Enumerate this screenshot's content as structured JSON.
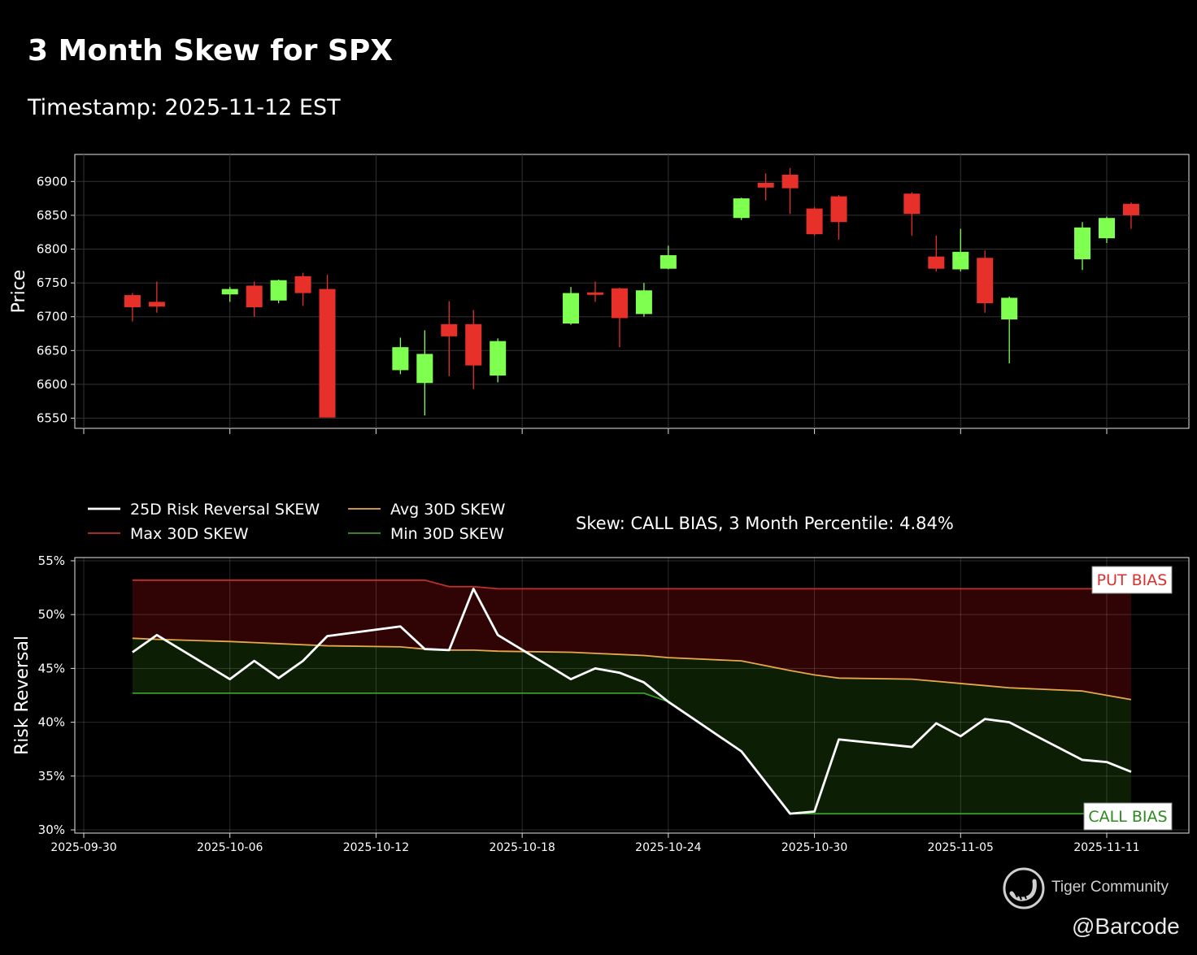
{
  "title": "3 Month Skew for SPX",
  "subtitle": "Timestamp: 2025-11-12 EST",
  "stat_text": "Skew: CALL BIAS, 3 Month Percentile: 4.84%",
  "put_bias_label": "PUT BIAS",
  "call_bias_label": "CALL BIAS",
  "watermark": {
    "brand": "Tiger Community",
    "handle": "@Barcode",
    "logo_icon": "tiger-community-logo-icon"
  },
  "colors": {
    "up": "#7fff50",
    "down": "#e8302a",
    "rr": "#ffffff",
    "max": "#c0302a",
    "avg": "#e6a84a",
    "min": "#3a9a2a",
    "put_fill": "#300404",
    "call_fill": "#0c1e04"
  },
  "chart_data": [
    {
      "type": "candlestick",
      "ylabel": "Price",
      "ylim": [
        6535,
        6940
      ],
      "yticks": [
        6550,
        6600,
        6650,
        6700,
        6750,
        6800,
        6850,
        6900
      ],
      "xlim": [
        "2025-09-30",
        "2025-11-13"
      ],
      "xticks": [
        "2025-09-30",
        "2025-10-06",
        "2025-10-12",
        "2025-10-18",
        "2025-10-24",
        "2025-10-30",
        "2025-11-05",
        "2025-11-11"
      ],
      "grid": true,
      "candles": [
        {
          "date": "2025-10-02",
          "open": 6732,
          "high": 6735,
          "low": 6693,
          "close": 6714
        },
        {
          "date": "2025-10-03",
          "open": 6722,
          "high": 6752,
          "low": 6706,
          "close": 6715
        },
        {
          "date": "2025-10-06",
          "open": 6733,
          "high": 6744,
          "low": 6722,
          "close": 6741
        },
        {
          "date": "2025-10-07",
          "open": 6746,
          "high": 6752,
          "low": 6700,
          "close": 6714
        },
        {
          "date": "2025-10-08",
          "open": 6724,
          "high": 6755,
          "low": 6720,
          "close": 6754
        },
        {
          "date": "2025-10-09",
          "open": 6760,
          "high": 6765,
          "low": 6716,
          "close": 6735
        },
        {
          "date": "2025-10-10",
          "open": 6741,
          "high": 6762,
          "low": 6551,
          "close": 6551
        },
        {
          "date": "2025-10-13",
          "open": 6621,
          "high": 6669,
          "low": 6615,
          "close": 6655
        },
        {
          "date": "2025-10-14",
          "open": 6602,
          "high": 6680,
          "low": 6554,
          "close": 6645
        },
        {
          "date": "2025-10-15",
          "open": 6689,
          "high": 6723,
          "low": 6612,
          "close": 6671
        },
        {
          "date": "2025-10-16",
          "open": 6689,
          "high": 6710,
          "low": 6593,
          "close": 6628
        },
        {
          "date": "2025-10-17",
          "open": 6613,
          "high": 6668,
          "low": 6603,
          "close": 6664
        },
        {
          "date": "2025-10-20",
          "open": 6690,
          "high": 6744,
          "low": 6688,
          "close": 6735
        },
        {
          "date": "2025-10-21",
          "open": 6736,
          "high": 6752,
          "low": 6722,
          "close": 6735
        },
        {
          "date": "2025-10-22",
          "open": 6742,
          "high": 6743,
          "low": 6655,
          "close": 6698
        },
        {
          "date": "2025-10-23",
          "open": 6704,
          "high": 6750,
          "low": 6700,
          "close": 6739
        },
        {
          "date": "2025-10-24",
          "open": 6771,
          "high": 6805,
          "low": 6770,
          "close": 6791
        },
        {
          "date": "2025-10-27",
          "open": 6846,
          "high": 6876,
          "low": 6843,
          "close": 6875
        },
        {
          "date": "2025-10-28",
          "open": 6898,
          "high": 6912,
          "low": 6872,
          "close": 6891
        },
        {
          "date": "2025-10-29",
          "open": 6910,
          "high": 6920,
          "low": 6852,
          "close": 6890
        },
        {
          "date": "2025-10-30",
          "open": 6860,
          "high": 6862,
          "low": 6820,
          "close": 6822
        },
        {
          "date": "2025-10-31",
          "open": 6878,
          "high": 6880,
          "low": 6814,
          "close": 6840
        },
        {
          "date": "2025-11-03",
          "open": 6882,
          "high": 6884,
          "low": 6820,
          "close": 6852
        },
        {
          "date": "2025-11-04",
          "open": 6789,
          "high": 6820,
          "low": 6767,
          "close": 6771
        },
        {
          "date": "2025-11-05",
          "open": 6770,
          "high": 6830,
          "low": 6767,
          "close": 6796
        },
        {
          "date": "2025-11-06",
          "open": 6787,
          "high": 6798,
          "low": 6706,
          "close": 6720
        },
        {
          "date": "2025-11-07",
          "open": 6696,
          "high": 6730,
          "low": 6631,
          "close": 6728
        },
        {
          "date": "2025-11-10",
          "open": 6785,
          "high": 6840,
          "low": 6769,
          "close": 6832
        },
        {
          "date": "2025-11-11",
          "open": 6816,
          "high": 6848,
          "low": 6809,
          "close": 6846
        },
        {
          "date": "2025-11-12",
          "open": 6867,
          "high": 6869,
          "low": 6830,
          "close": 6850
        }
      ]
    },
    {
      "type": "line",
      "ylabel": "Risk Reversal",
      "ylim": [
        29.7,
        55.3
      ],
      "yticks": [
        30,
        35,
        40,
        45,
        50,
        55
      ],
      "ytick_labels": [
        "30%",
        "35%",
        "40%",
        "45%",
        "50%",
        "55%"
      ],
      "xlim": [
        "2025-09-30",
        "2025-11-13"
      ],
      "xticks": [
        "2025-09-30",
        "2025-10-06",
        "2025-10-12",
        "2025-10-18",
        "2025-10-24",
        "2025-10-30",
        "2025-11-05",
        "2025-11-11"
      ],
      "grid": true,
      "legend": "top-left, outside above",
      "x": [
        "2025-10-02",
        "2025-10-03",
        "2025-10-06",
        "2025-10-07",
        "2025-10-08",
        "2025-10-09",
        "2025-10-10",
        "2025-10-13",
        "2025-10-14",
        "2025-10-15",
        "2025-10-16",
        "2025-10-17",
        "2025-10-20",
        "2025-10-21",
        "2025-10-22",
        "2025-10-23",
        "2025-10-24",
        "2025-10-27",
        "2025-10-29",
        "2025-10-30",
        "2025-10-31",
        "2025-11-03",
        "2025-11-04",
        "2025-11-05",
        "2025-11-06",
        "2025-11-07",
        "2025-11-10",
        "2025-11-11",
        "2025-11-12"
      ],
      "series": [
        {
          "name": "25D Risk Reversal SKEW",
          "key": "rr",
          "values": [
            46.5,
            48.1,
            44.0,
            45.7,
            44.1,
            45.7,
            48.0,
            48.9,
            46.8,
            46.7,
            52.4,
            48.1,
            44.0,
            45.0,
            44.6,
            43.7,
            41.9,
            37.3,
            31.5,
            31.7,
            38.4,
            37.7,
            39.9,
            38.7,
            40.3,
            40.0,
            36.5,
            36.3,
            35.4
          ]
        },
        {
          "name": "Max 30D SKEW",
          "key": "max",
          "values": [
            53.2,
            53.2,
            53.2,
            53.2,
            53.2,
            53.2,
            53.2,
            53.2,
            53.2,
            52.6,
            52.6,
            52.4,
            52.4,
            52.4,
            52.4,
            52.4,
            52.4,
            52.4,
            52.4,
            52.4,
            52.4,
            52.4,
            52.4,
            52.4,
            52.4,
            52.4,
            52.4,
            52.4,
            52.4
          ]
        },
        {
          "name": "Avg 30D SKEW",
          "key": "avg",
          "values": [
            47.8,
            47.7,
            47.5,
            47.4,
            47.3,
            47.2,
            47.1,
            47.0,
            46.8,
            46.7,
            46.7,
            46.6,
            46.5,
            46.4,
            46.3,
            46.2,
            46.0,
            45.7,
            44.8,
            44.4,
            44.1,
            44.0,
            43.8,
            43.6,
            43.4,
            43.2,
            42.9,
            42.5,
            42.1
          ]
        },
        {
          "name": "Min 30D SKEW",
          "key": "min",
          "values": [
            42.7,
            42.7,
            42.7,
            42.7,
            42.7,
            42.7,
            42.7,
            42.7,
            42.7,
            42.7,
            42.7,
            42.7,
            42.7,
            42.7,
            42.7,
            42.7,
            41.9,
            37.3,
            31.5,
            31.5,
            31.5,
            31.5,
            31.5,
            31.5,
            31.5,
            31.5,
            31.5,
            31.5,
            31.5
          ]
        }
      ]
    }
  ]
}
